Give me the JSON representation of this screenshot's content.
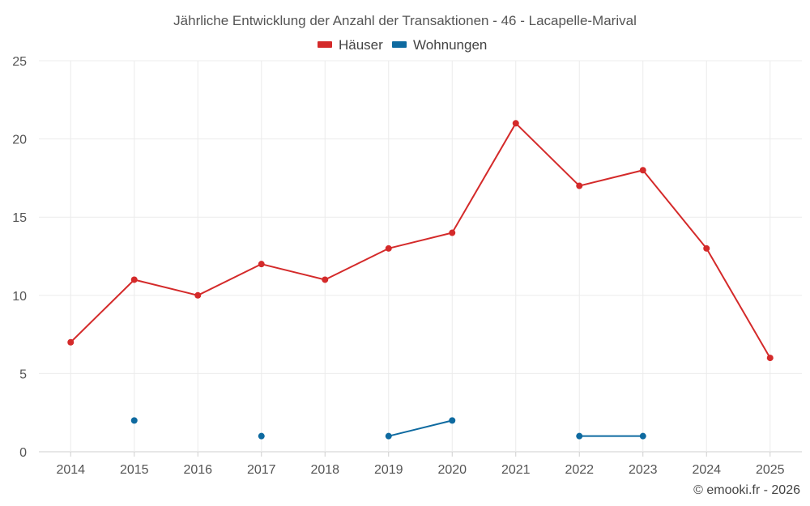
{
  "chart_data": {
    "type": "line",
    "title": "Jährliche Entwicklung der Anzahl der Transaktionen - 46 - Lacapelle-Marival",
    "categories": [
      "2014",
      "2015",
      "2016",
      "2017",
      "2018",
      "2019",
      "2020",
      "2021",
      "2022",
      "2023",
      "2024",
      "2025"
    ],
    "ylim": [
      0,
      25
    ],
    "yticks": [
      0,
      5,
      10,
      15,
      20,
      25
    ],
    "grid": true,
    "legend_position": "top-center",
    "series": [
      {
        "name": "Häuser",
        "color": "#d42a2a",
        "values": [
          7,
          11,
          10,
          12,
          11,
          13,
          14,
          21,
          17,
          18,
          13,
          6
        ]
      },
      {
        "name": "Wohnungen",
        "color": "#0e6aa0",
        "values": [
          null,
          2,
          null,
          1,
          null,
          1,
          2,
          null,
          1,
          1,
          null,
          null
        ]
      }
    ],
    "credit": "© emooki.fr - 2026"
  }
}
